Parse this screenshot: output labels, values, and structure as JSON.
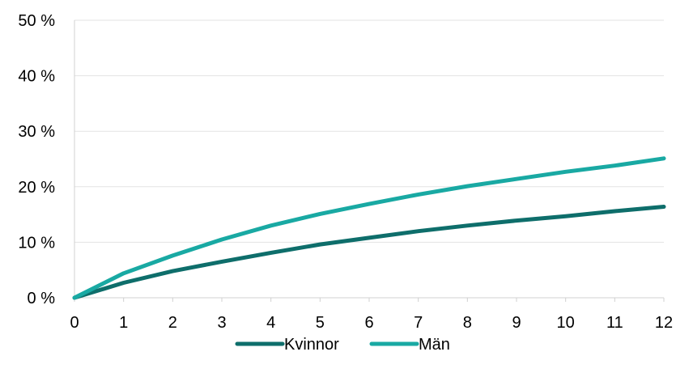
{
  "chart_data": {
    "type": "line",
    "x": [
      0,
      1,
      2,
      3,
      4,
      5,
      6,
      7,
      8,
      9,
      10,
      11,
      12
    ],
    "series": [
      {
        "name": "Kvinnor",
        "color": "#0e6e6b",
        "values": [
          0,
          2.7,
          4.8,
          6.5,
          8.1,
          9.6,
          10.8,
          12.0,
          13.0,
          13.9,
          14.7,
          15.6,
          16.4
        ]
      },
      {
        "name": "Män",
        "color": "#19a9a3",
        "values": [
          0,
          4.4,
          7.6,
          10.5,
          13.0,
          15.1,
          16.9,
          18.6,
          20.1,
          21.4,
          22.7,
          23.8,
          25.1
        ]
      }
    ],
    "xlim": [
      0,
      12
    ],
    "ylim": [
      0,
      50
    ],
    "x_ticks": [
      "0",
      "1",
      "2",
      "3",
      "4",
      "5",
      "6",
      "7",
      "8",
      "9",
      "10",
      "11",
      "12"
    ],
    "y_ticks": [
      "0 %",
      "10 %",
      "20 %",
      "30 %",
      "40 %",
      "50 %"
    ],
    "grid": true,
    "legend_position": "bottom-center",
    "title": "",
    "xlabel": "",
    "ylabel": ""
  }
}
